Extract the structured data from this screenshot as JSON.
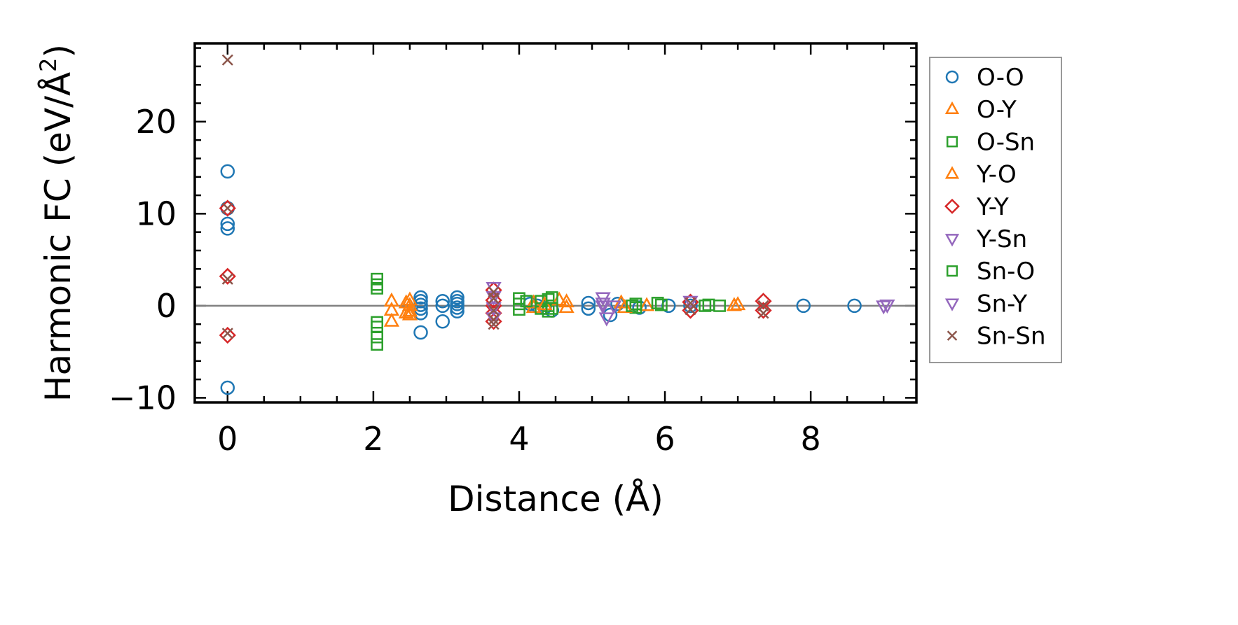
{
  "chart_data": {
    "type": "scatter",
    "title": "",
    "xlabel": "Distance (Å)",
    "ylabel_base": "Harmonic FC (eV/Å",
    "ylabel_sup": "2",
    "ylabel_close": ")",
    "xlim": [
      -0.45,
      9.45
    ],
    "ylim": [
      -10.5,
      28.5
    ],
    "x_ticks": [
      0,
      2,
      4,
      6,
      8
    ],
    "x_tick_labels": [
      "0",
      "2",
      "4",
      "6",
      "8"
    ],
    "y_ticks": [
      -10,
      0,
      10,
      20
    ],
    "y_tick_labels": [
      "−10",
      "0",
      "10",
      "20"
    ],
    "grid": false,
    "zero_line": true,
    "legend_position": "outside-right",
    "series": [
      {
        "name": "O-O",
        "marker": "circle",
        "color": "#1f77b4",
        "points": [
          [
            0,
            14.6
          ],
          [
            0,
            10.6
          ],
          [
            0,
            8.9
          ],
          [
            0,
            8.4
          ],
          [
            0,
            -8.9
          ],
          [
            2.65,
            0.9
          ],
          [
            2.65,
            0.5
          ],
          [
            2.65,
            0.1
          ],
          [
            2.65,
            -0.3
          ],
          [
            2.65,
            -0.8
          ],
          [
            2.65,
            -2.9
          ],
          [
            2.95,
            0.5
          ],
          [
            2.95,
            0.0
          ],
          [
            2.95,
            -1.7
          ],
          [
            3.15,
            0.9
          ],
          [
            3.15,
            0.5
          ],
          [
            3.15,
            0.2
          ],
          [
            3.15,
            -0.2
          ],
          [
            3.15,
            -0.6
          ],
          [
            4.15,
            0.2
          ],
          [
            4.25,
            0.0
          ],
          [
            4.35,
            -0.2
          ],
          [
            4.45,
            -0.5
          ],
          [
            4.95,
            0.3
          ],
          [
            4.95,
            -0.3
          ],
          [
            5.25,
            -1.0
          ],
          [
            5.35,
            0.2
          ],
          [
            5.65,
            -0.2
          ],
          [
            6.05,
            0.0
          ],
          [
            6.35,
            0.0
          ],
          [
            7.9,
            0.0
          ],
          [
            8.6,
            0.0
          ]
        ]
      },
      {
        "name": "O-Y",
        "marker": "triangle-up",
        "color": "#ff7f0e",
        "points": [
          [
            2.25,
            0.5
          ],
          [
            2.25,
            -0.5
          ],
          [
            2.25,
            -1.7
          ],
          [
            2.5,
            0.6
          ],
          [
            2.5,
            0.0
          ],
          [
            2.5,
            -0.6
          ],
          [
            2.5,
            -1.0
          ],
          [
            4.2,
            0.3
          ],
          [
            4.2,
            -0.2
          ],
          [
            4.65,
            0.4
          ],
          [
            4.65,
            -0.2
          ],
          [
            5.4,
            0.3
          ],
          [
            5.75,
            0.0
          ],
          [
            6.95,
            0.0
          ]
        ]
      },
      {
        "name": "O-Sn",
        "marker": "square",
        "color": "#2ca02c",
        "points": [
          [
            2.05,
            2.9
          ],
          [
            2.05,
            2.3
          ],
          [
            2.05,
            1.9
          ],
          [
            2.05,
            -1.8
          ],
          [
            2.05,
            -2.3
          ],
          [
            2.05,
            -3.4
          ],
          [
            2.05,
            -4.2
          ],
          [
            4.0,
            0.8
          ],
          [
            4.0,
            0.2
          ],
          [
            4.0,
            -0.4
          ],
          [
            4.3,
            0.5
          ],
          [
            4.3,
            -0.3
          ],
          [
            4.4,
            0.7
          ],
          [
            4.4,
            0.0
          ],
          [
            4.4,
            -0.6
          ],
          [
            5.6,
            0.2
          ],
          [
            5.6,
            -0.2
          ],
          [
            5.95,
            0.1
          ],
          [
            6.55,
            0.0
          ],
          [
            6.75,
            0.0
          ]
        ]
      },
      {
        "name": "Y-O",
        "marker": "triangle-up",
        "color": "#ff7f0e",
        "points": [
          [
            2.45,
            0.3
          ],
          [
            2.45,
            -0.8
          ],
          [
            4.35,
            0.1
          ],
          [
            4.55,
            0.6
          ],
          [
            5.45,
            -0.2
          ],
          [
            7.0,
            0.1
          ]
        ]
      },
      {
        "name": "Y-Y",
        "marker": "diamond",
        "color": "#d62728",
        "points": [
          [
            0,
            10.6
          ],
          [
            0,
            3.2
          ],
          [
            0,
            -3.2
          ],
          [
            3.65,
            1.7
          ],
          [
            3.65,
            0.6
          ],
          [
            3.65,
            0.0
          ],
          [
            3.65,
            -0.8
          ],
          [
            3.65,
            -1.7
          ],
          [
            6.35,
            0.4
          ],
          [
            6.35,
            -0.5
          ],
          [
            7.35,
            0.5
          ],
          [
            7.35,
            -0.5
          ]
        ]
      },
      {
        "name": "Y-Sn",
        "marker": "triangle-down",
        "color": "#9467bd",
        "points": [
          [
            3.65,
            2.0
          ],
          [
            3.65,
            1.0
          ],
          [
            3.65,
            -0.2
          ],
          [
            3.65,
            -1.3
          ],
          [
            5.15,
            0.9
          ],
          [
            5.15,
            0.0
          ],
          [
            5.2,
            -1.3
          ],
          [
            6.35,
            0.5
          ],
          [
            9.0,
            0.0
          ]
        ]
      },
      {
        "name": "Sn-O",
        "marker": "square",
        "color": "#2ca02c",
        "points": [
          [
            4.1,
            0.5
          ],
          [
            4.45,
            0.9
          ],
          [
            4.45,
            -0.3
          ],
          [
            5.55,
            0.0
          ],
          [
            5.9,
            0.3
          ],
          [
            6.6,
            0.1
          ]
        ]
      },
      {
        "name": "Sn-Y",
        "marker": "triangle-down",
        "color": "#9467bd",
        "points": [
          [
            5.15,
            0.3
          ],
          [
            5.3,
            0.0
          ],
          [
            9.05,
            0.1
          ]
        ]
      },
      {
        "name": "Sn-Sn",
        "marker": "x",
        "color": "#8c564b",
        "points": [
          [
            0,
            26.7
          ],
          [
            0,
            10.6
          ],
          [
            0,
            2.9
          ],
          [
            0,
            -3.0
          ],
          [
            3.65,
            1.5
          ],
          [
            3.65,
            0.8
          ],
          [
            3.65,
            -0.5
          ],
          [
            3.65,
            -1.5
          ],
          [
            3.65,
            -2.0
          ],
          [
            6.35,
            0.3
          ],
          [
            6.35,
            -0.4
          ],
          [
            7.35,
            0.0
          ],
          [
            7.35,
            -0.8
          ]
        ]
      }
    ]
  }
}
